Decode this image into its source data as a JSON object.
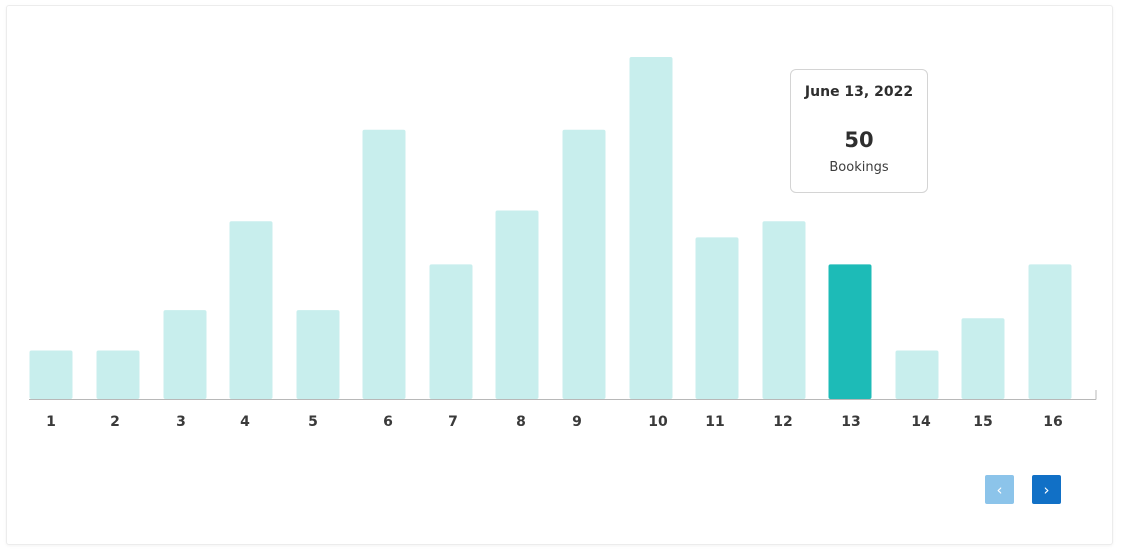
{
  "chart_data": {
    "type": "bar",
    "categories": [
      "1",
      "2",
      "3",
      "4",
      "5",
      "6",
      "7",
      "8",
      "9",
      "10",
      "11",
      "12",
      "13",
      "14",
      "15",
      "16"
    ],
    "values": [
      18,
      18,
      33,
      66,
      33,
      100,
      50,
      70,
      100,
      127,
      60,
      66,
      50,
      18,
      30,
      50
    ],
    "highlighted_category": "13",
    "ylim": [
      0,
      127
    ],
    "grid": false,
    "bar_color": "#c8eeed",
    "highlight_color": "#1dbbb7",
    "axis_color": "#b8b8b8"
  },
  "tooltip": {
    "date": "June 13, 2022",
    "value": "50",
    "unit": "Bookings"
  },
  "pagination": {
    "prev_icon": "‹",
    "next_icon": "›",
    "prev_color": "#8cc4ea",
    "next_color": "#1170c6"
  }
}
